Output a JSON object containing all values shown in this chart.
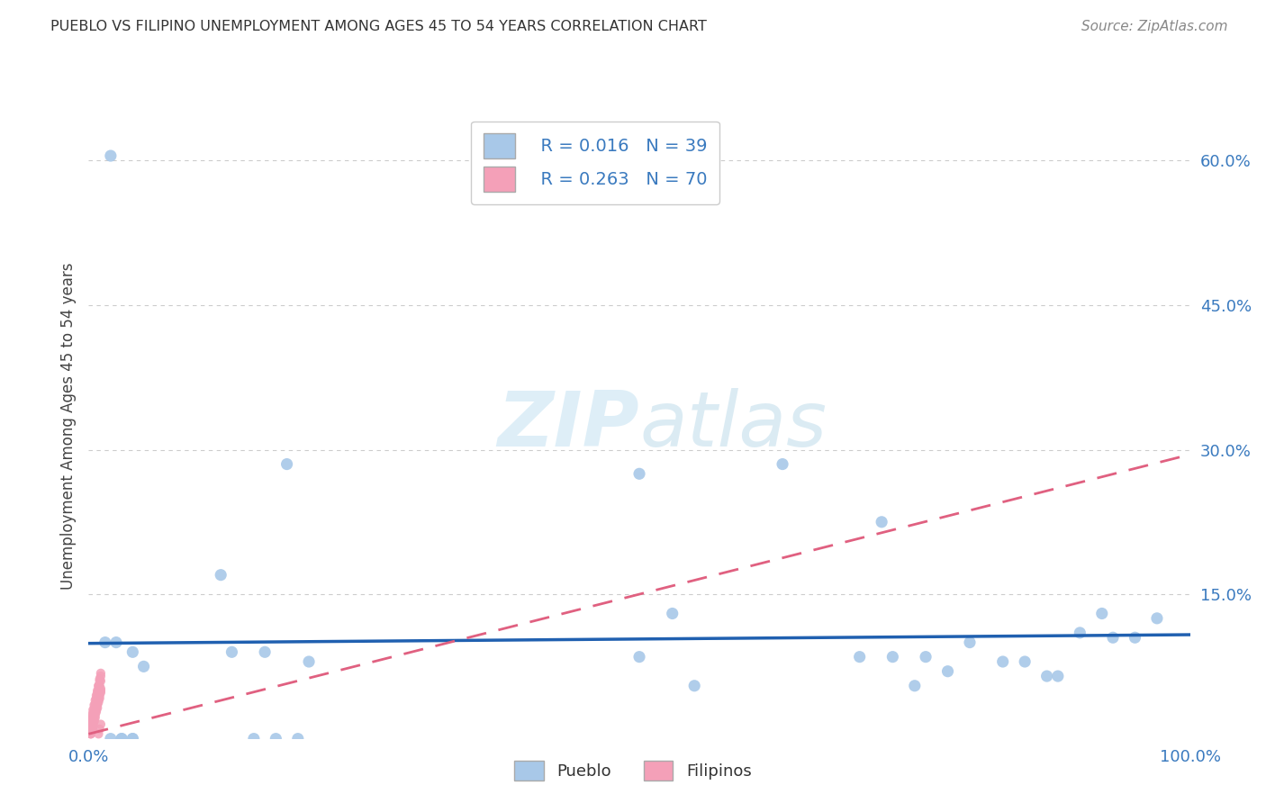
{
  "title": "PUEBLO VS FILIPINO UNEMPLOYMENT AMONG AGES 45 TO 54 YEARS CORRELATION CHART",
  "source": "Source: ZipAtlas.com",
  "ylabel": "Unemployment Among Ages 45 to 54 years",
  "xlim": [
    0,
    1.0
  ],
  "ylim": [
    0,
    0.65
  ],
  "ytick_positions": [
    0.0,
    0.15,
    0.3,
    0.45,
    0.6
  ],
  "ytick_labels": [
    "",
    "15.0%",
    "30.0%",
    "45.0%",
    "60.0%"
  ],
  "pueblo_R": 0.016,
  "pueblo_N": 39,
  "filipino_R": 0.263,
  "filipino_N": 70,
  "pueblo_color": "#a8c8e8",
  "filipino_color": "#f4a0b8",
  "pueblo_line_color": "#2060b0",
  "filipino_line_color": "#e06080",
  "title_color": "#333333",
  "source_color": "#888888",
  "axis_label_color": "#444444",
  "tick_color": "#3a7abf",
  "watermark_color": "#d0e8f5",
  "grid_color": "#cccccc",
  "legend_edge_color": "#cccccc",
  "bottom_legend_label_color": "#333333",
  "pueblo_x": [
    0.02,
    0.025,
    0.015,
    0.04,
    0.05,
    0.03,
    0.03,
    0.04,
    0.02,
    0.04,
    0.12,
    0.13,
    0.16,
    0.18,
    0.2,
    0.5,
    0.53,
    0.63,
    0.72,
    0.75,
    0.78,
    0.8,
    0.83,
    0.85,
    0.87,
    0.9,
    0.92,
    0.95,
    0.97,
    0.15,
    0.17,
    0.19,
    0.5,
    0.55,
    0.7,
    0.73,
    0.76,
    0.88,
    0.93
  ],
  "pueblo_y": [
    0.605,
    0.1,
    0.1,
    0.09,
    0.075,
    0.0,
    0.0,
    0.0,
    0.0,
    0.0,
    0.17,
    0.09,
    0.09,
    0.285,
    0.08,
    0.275,
    0.13,
    0.285,
    0.225,
    0.055,
    0.07,
    0.1,
    0.08,
    0.08,
    0.065,
    0.11,
    0.13,
    0.105,
    0.125,
    0.0,
    0.0,
    0.0,
    0.085,
    0.055,
    0.085,
    0.085,
    0.085,
    0.065,
    0.105
  ],
  "filipino_x": [
    0.002,
    0.003,
    0.004,
    0.005,
    0.006,
    0.007,
    0.008,
    0.009,
    0.01,
    0.011,
    0.002,
    0.003,
    0.004,
    0.005,
    0.006,
    0.007,
    0.008,
    0.009,
    0.01,
    0.011,
    0.002,
    0.003,
    0.004,
    0.005,
    0.006,
    0.007,
    0.008,
    0.009,
    0.01,
    0.011,
    0.002,
    0.003,
    0.004,
    0.005,
    0.006,
    0.007,
    0.008,
    0.009,
    0.01,
    0.011,
    0.002,
    0.003,
    0.004,
    0.005,
    0.006,
    0.007,
    0.008,
    0.009,
    0.01,
    0.011,
    0.002,
    0.003,
    0.004,
    0.005,
    0.006,
    0.007,
    0.008,
    0.009,
    0.01,
    0.011,
    0.002,
    0.003,
    0.004,
    0.005,
    0.006,
    0.007,
    0.008,
    0.009,
    0.01,
    0.011
  ],
  "filipino_y": [
    0.005,
    0.01,
    0.015,
    0.02,
    0.025,
    0.03,
    0.035,
    0.04,
    0.045,
    0.05,
    0.01,
    0.015,
    0.02,
    0.025,
    0.03,
    0.035,
    0.04,
    0.005,
    0.01,
    0.015,
    0.02,
    0.025,
    0.03,
    0.035,
    0.04,
    0.045,
    0.05,
    0.055,
    0.06,
    0.065,
    0.005,
    0.008,
    0.012,
    0.018,
    0.022,
    0.028,
    0.032,
    0.038,
    0.042,
    0.048,
    0.015,
    0.02,
    0.025,
    0.03,
    0.035,
    0.04,
    0.045,
    0.05,
    0.055,
    0.06,
    0.008,
    0.012,
    0.018,
    0.022,
    0.028,
    0.032,
    0.038,
    0.042,
    0.048,
    0.052,
    0.01,
    0.015,
    0.022,
    0.028,
    0.035,
    0.042,
    0.048,
    0.055,
    0.062,
    0.068
  ],
  "pueblo_trend_x": [
    0.0,
    1.0
  ],
  "pueblo_trend_y": [
    0.099,
    0.108
  ],
  "filipino_trend_x": [
    0.0,
    1.0
  ],
  "filipino_trend_y": [
    0.005,
    0.295
  ]
}
